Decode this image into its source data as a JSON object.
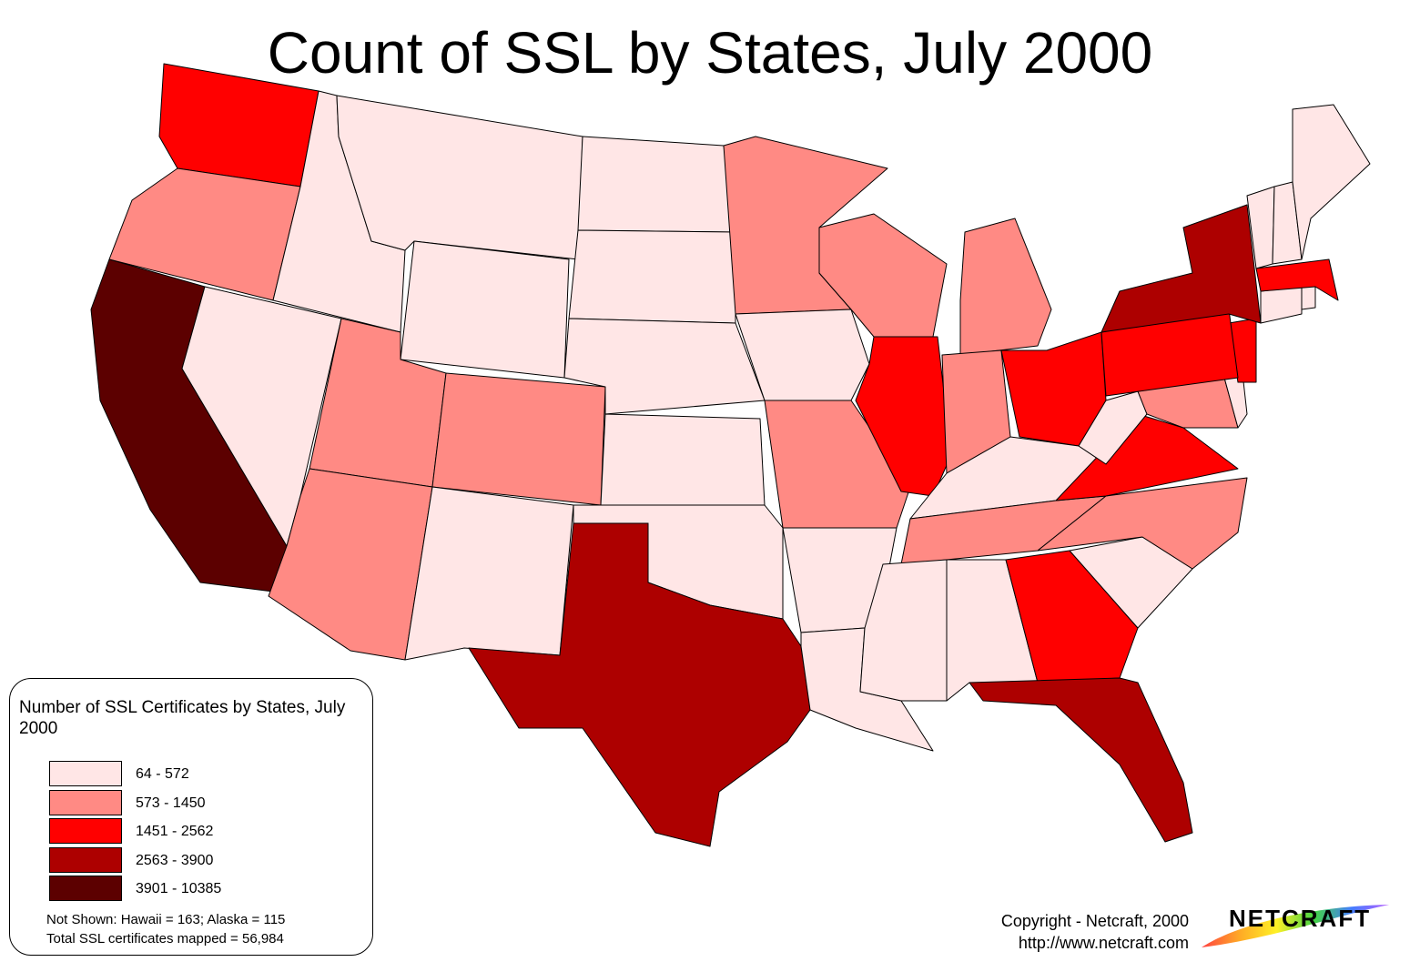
{
  "title": "Count of SSL by States, July 2000",
  "legend": {
    "title": "Number of SSL Certificates by States, July 2000",
    "classes": [
      {
        "range": "64 - 572",
        "color": "#ffe6e6"
      },
      {
        "range": "573 - 1450",
        "color": "#ff8a84"
      },
      {
        "range": "1451 - 2562",
        "color": "#ff0000"
      },
      {
        "range": "2563 - 3900",
        "color": "#ad0000"
      },
      {
        "range": "3901 - 10385",
        "color": "#5c0000"
      }
    ],
    "not_shown": "Not Shown: Hawaii =  163; Alaska = 115",
    "total": "Total SSL certificates mapped = 56,984"
  },
  "states": {
    "WA": 2,
    "OR": 1,
    "CA": 4,
    "ID": 0,
    "NV": 0,
    "MT": 0,
    "WY": 0,
    "UT": 1,
    "AZ": 1,
    "CO": 1,
    "NM": 0,
    "ND": 0,
    "SD": 0,
    "NE": 0,
    "KS": 0,
    "OK": 0,
    "TX": 3,
    "MN": 1,
    "IA": 0,
    "MO": 1,
    "AR": 0,
    "LA": 0,
    "WI": 1,
    "IL": 2,
    "MI": 1,
    "IN": 1,
    "OH": 2,
    "KY": 0,
    "TN": 1,
    "MS": 0,
    "AL": 0,
    "GA": 2,
    "FL": 3,
    "SC": 0,
    "NC": 1,
    "VA": 2,
    "WV": 0,
    "MD": 1,
    "DE": 0,
    "NJ": 2,
    "PA": 2,
    "NY": 3,
    "CT": 0,
    "RI": 0,
    "MA": 2,
    "VT": 0,
    "NH": 0,
    "ME": 0
  },
  "copyright": {
    "line1": "Copyright - Netcraft, 2000",
    "line2": "http://www.netcraft.com"
  },
  "logo_text": "NETCRAFT"
}
